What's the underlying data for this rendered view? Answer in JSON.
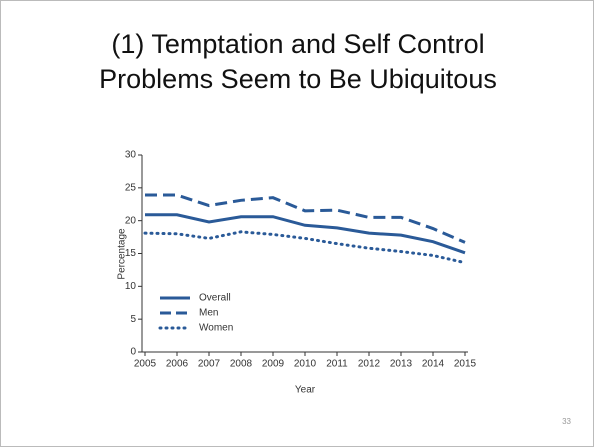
{
  "slide_number": "33",
  "chart_data": {
    "type": "line",
    "title": "(1) Temptation and Self Control Problems Seem to Be Ubiquitous",
    "x_label": "Year",
    "y_label": "Percentage",
    "x": [
      2005,
      2006,
      2007,
      2008,
      2009,
      2010,
      2011,
      2012,
      2013,
      2014,
      2015
    ],
    "series": [
      {
        "name": "Overall",
        "color": "#2a5a98",
        "style": "solid",
        "values": [
          20.9,
          20.9,
          19.8,
          20.6,
          20.6,
          19.3,
          18.9,
          18.1,
          17.8,
          16.8,
          15.1
        ]
      },
      {
        "name": "Men",
        "color": "#2a5a98",
        "style": "dashed",
        "values": [
          23.9,
          23.9,
          22.3,
          23.1,
          23.5,
          21.5,
          21.6,
          20.5,
          20.5,
          18.8,
          16.7
        ]
      },
      {
        "name": "Women",
        "color": "#2a5a98",
        "style": "dotted",
        "values": [
          18.1,
          18.0,
          17.3,
          18.3,
          17.9,
          17.3,
          16.5,
          15.8,
          15.3,
          14.7,
          13.6
        ]
      }
    ],
    "xlim": [
      2005,
      2015
    ],
    "xticks": [
      2005,
      2006,
      2007,
      2008,
      2009,
      2010,
      2011,
      2012,
      2013,
      2014,
      2015
    ],
    "ylim": [
      0,
      30
    ],
    "yticks": [
      0,
      5,
      10,
      15,
      20,
      25,
      30
    ],
    "grid": false,
    "legend": "lower left"
  }
}
